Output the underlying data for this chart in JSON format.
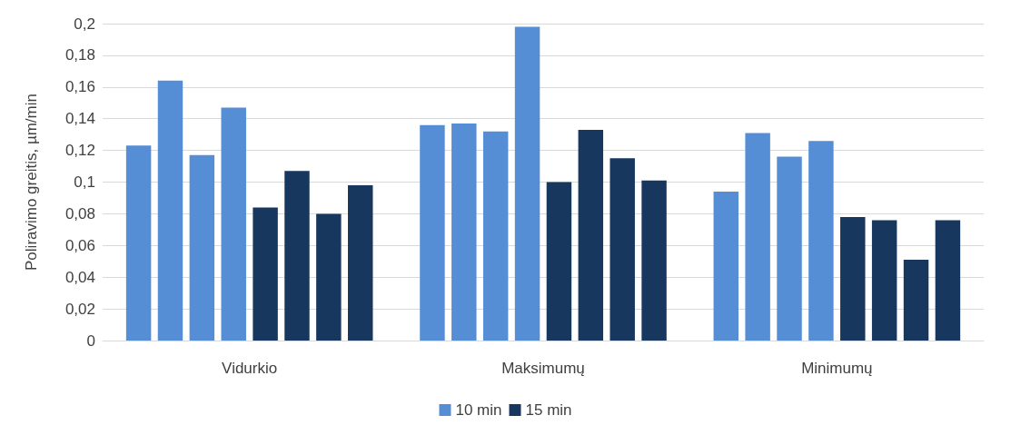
{
  "chart_data": {
    "type": "bar",
    "ylabel": "Poliravimo greitis, µm/min",
    "categories": [
      "Vidurkio",
      "Maksimumų",
      "Minimumų"
    ],
    "series": [
      {
        "name": "10 min",
        "color": "#558ed5",
        "values": [
          0.123,
          0.136,
          0.094
        ]
      },
      {
        "color": "#558ed5",
        "values": [
          0.164,
          0.137,
          0.131
        ]
      },
      {
        "color": "#558ed5",
        "values": [
          0.117,
          0.132,
          0.116
        ]
      },
      {
        "color": "#558ed5",
        "values": [
          0.147,
          0.198,
          0.126
        ]
      },
      {
        "name": "15 min",
        "color": "#17375e",
        "values": [
          0.084,
          0.1,
          0.078
        ]
      },
      {
        "color": "#17375e",
        "values": [
          0.107,
          0.133,
          0.076
        ]
      },
      {
        "color": "#17375e",
        "values": [
          0.08,
          0.115,
          0.051
        ]
      },
      {
        "color": "#17375e",
        "values": [
          0.098,
          0.101,
          0.076
        ]
      }
    ],
    "ylim": [
      0,
      0.2
    ],
    "yticks": [
      0,
      {
        "value": 0.02,
        "label": "0,02"
      },
      {
        "value": 0.04,
        "label": "0,04"
      },
      {
        "value": 0.06,
        "label": "0,06"
      },
      {
        "value": 0.08,
        "label": "0,08"
      },
      {
        "value": 0.1,
        "label": "0,1"
      },
      {
        "value": 0.12,
        "label": "0,12"
      },
      {
        "value": 0.14,
        "label": "0,14"
      },
      {
        "value": 0.16,
        "label": "0,16"
      },
      {
        "value": 0.18,
        "label": "0,18"
      },
      {
        "value": 0.2,
        "label": "0,2"
      }
    ],
    "grid": "y",
    "legend": "bottom"
  }
}
